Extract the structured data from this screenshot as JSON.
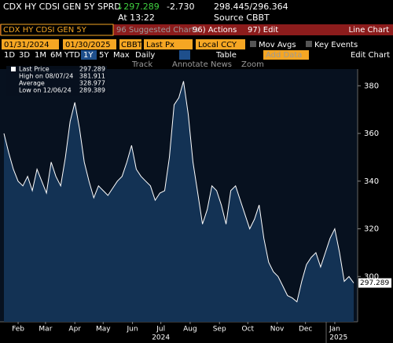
{
  "header": {
    "ticker": "CDX HY CDSI GEN 5Y SPRD",
    "last": "↓297.289",
    "change": "-2.730",
    "bid_ask": "298.445/296.364",
    "time": "At 13:22",
    "source": "Source CBBT"
  },
  "menu": {
    "security": "CDX HY CDSI GEN 5Y",
    "suggested": "96 Suggested Charts",
    "actions": "96) Actions",
    "edit": "97) Edit",
    "chart_type": "Line Chart"
  },
  "controls": {
    "start": "01/31/2024",
    "end": "01/30/2025",
    "source": "CBBT",
    "field": "Last Px",
    "currency": "Local CCY",
    "mov_avgs": "Mov Avgs",
    "key_events": "Key Events"
  },
  "periods": {
    "items": [
      "1D",
      "3D",
      "1M",
      "6M",
      "YTD",
      "1Y",
      "5Y",
      "Max"
    ],
    "frequency": "Daily",
    "table": "Table",
    "add_data": "Add Data",
    "edit_chart": "Edit Chart"
  },
  "tools": [
    "Track",
    "Annotate",
    "News",
    "Zoom"
  ],
  "chart_data": {
    "type": "area",
    "color": "#ffffff",
    "fill": "#133254",
    "legend": [
      {
        "name": "Last Price",
        "value": 297.289
      },
      {
        "name": "High on 08/07/24",
        "value": 381.911
      },
      {
        "name": "Average",
        "value": 328.977
      },
      {
        "name": "Low on 12/06/24",
        "value": 289.389
      }
    ],
    "values": [
      360,
      352,
      345,
      340,
      338,
      342,
      336,
      345,
      340,
      335,
      348,
      342,
      338,
      350,
      365,
      373,
      362,
      348,
      340,
      333,
      338,
      336,
      334,
      337,
      340,
      342,
      348,
      355,
      345,
      342,
      340,
      338,
      332,
      335,
      336,
      350,
      372,
      375,
      381.911,
      368,
      348,
      335,
      322,
      328,
      338,
      336,
      330,
      322,
      336,
      338,
      332,
      326,
      320,
      324,
      330,
      316,
      306,
      302,
      300,
      296,
      292,
      291,
      289.389,
      298,
      305,
      308,
      310,
      304,
      310,
      316,
      320,
      310,
      298,
      300,
      297.289
    ],
    "xlim": [
      0,
      74
    ],
    "xticks": [
      {
        "value": 3,
        "label": "Feb"
      },
      {
        "value": 8.8,
        "label": "Mar"
      },
      {
        "value": 15,
        "label": "Apr"
      },
      {
        "value": 21,
        "label": "May"
      },
      {
        "value": 27.2,
        "label": "Jun"
      },
      {
        "value": 33.2,
        "label": "Jul"
      },
      {
        "value": 39.4,
        "label": "Aug"
      },
      {
        "value": 45.6,
        "label": "Sep"
      },
      {
        "value": 51.6,
        "label": "Oct"
      },
      {
        "value": 57.8,
        "label": "Nov"
      },
      {
        "value": 63.8,
        "label": "Dec"
      },
      {
        "value": 70,
        "label": "Jan"
      }
    ],
    "year_ticks": [
      {
        "value": 33.2,
        "label": "2024"
      },
      {
        "value": 70.8,
        "label": "2025"
      }
    ],
    "ylim": [
      281,
      387
    ],
    "yticks": [
      300,
      320,
      340,
      360,
      380
    ],
    "last_label": "297.289"
  }
}
